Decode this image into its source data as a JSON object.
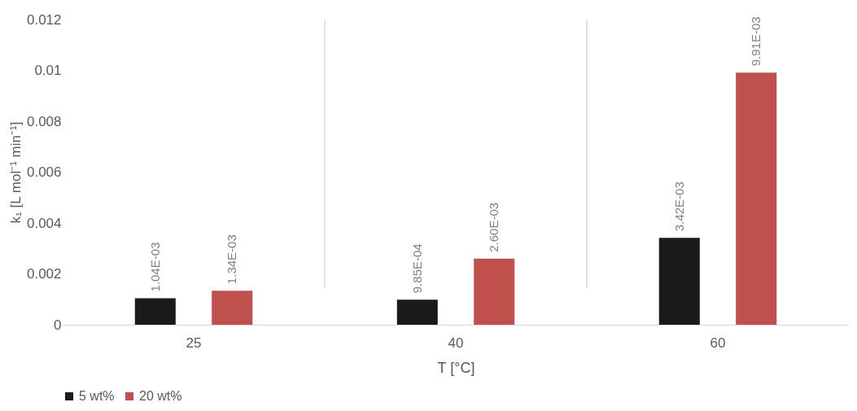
{
  "chart_data": {
    "type": "bar",
    "xlabel": "T [°C]",
    "ylabel": "k₁ [L mol⁻¹ min⁻¹]",
    "categories": [
      "25",
      "40",
      "60"
    ],
    "series": [
      {
        "name": "5 wt%",
        "color": "#1a1a1a",
        "values": [
          0.00104,
          0.000985,
          0.00342
        ],
        "value_labels": [
          "1.04E-03",
          "9.85E-04",
          "3.42E-03"
        ]
      },
      {
        "name": "20 wt%",
        "color": "#c0504d",
        "values": [
          0.00134,
          0.0026,
          0.00991
        ],
        "value_labels": [
          "1.34E-03",
          "2.60E-03",
          "9.91E-03"
        ]
      }
    ],
    "ylim": [
      0,
      0.012
    ],
    "yticks": [
      0,
      0.002,
      0.004,
      0.006,
      0.008,
      0.01,
      0.012
    ],
    "grid": "x",
    "legend": "bottom"
  }
}
